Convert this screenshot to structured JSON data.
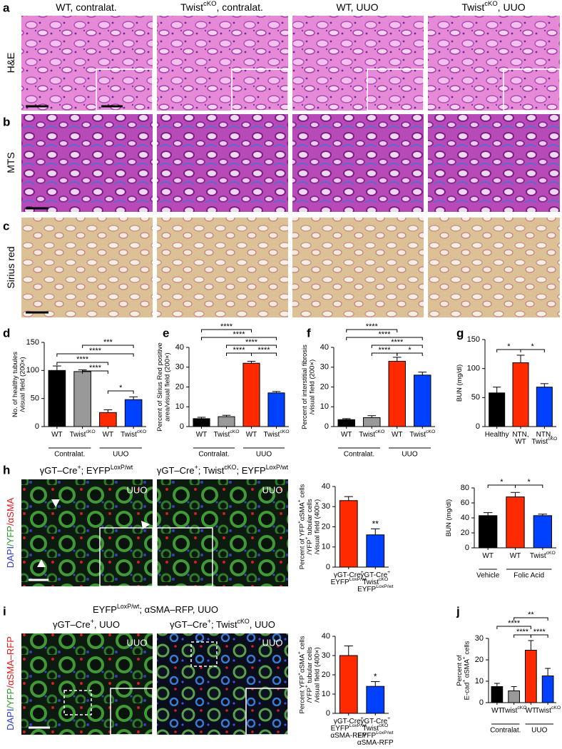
{
  "panel_letters": [
    "a",
    "b",
    "c",
    "d",
    "e",
    "f",
    "g",
    "h",
    "i",
    "j"
  ],
  "image_grid": {
    "columns": [
      [
        [
          "WT, contralat."
        ]
      ],
      [
        [
          "Twist",
          {
            "sup": "cKO"
          },
          ", contralat."
        ]
      ],
      [
        [
          "WT, UUO"
        ]
      ],
      [
        [
          "Twist",
          {
            "sup": "cKO"
          },
          ", UUO"
        ]
      ]
    ],
    "rows": [
      "H&E",
      "MTS",
      "Sirius red"
    ]
  },
  "panel_h": {
    "headers": [
      [
        [
          "γGT–Cre",
          {
            "sup": "+"
          },
          "; EYFP",
          {
            "sup": "LoxP/wt"
          }
        ]
      ],
      [
        [
          "γGT–Cre",
          {
            "sup": "+"
          },
          "; Twist",
          {
            "sup": "cKO"
          },
          "; EYFP",
          {
            "sup": "LoxP/wt"
          }
        ]
      ]
    ],
    "image_labels": [
      "UUO",
      "UUO"
    ],
    "stain": [
      [
        {
          "text": "DAPI",
          "color": "#2a3bd0"
        },
        {
          "text": "/YFP",
          "color": "#2a962a"
        },
        {
          "text": "/αSMA",
          "color": "#e01818"
        }
      ]
    ]
  },
  "panel_i": {
    "title": [
      [
        "EYFP",
        {
          "sup": "LoxP/wt"
        },
        "; αSMA–RFP, UUO"
      ]
    ],
    "headers": [
      [
        [
          "γGT–Cre",
          {
            "sup": "+"
          },
          ", UUO"
        ]
      ],
      [
        [
          "γGT–Cre",
          {
            "sup": "+"
          },
          "; Twist",
          {
            "sup": "cKO"
          },
          ", UUO"
        ]
      ]
    ],
    "image_labels": [
      "UUO",
      "UUO"
    ],
    "stain": [
      [
        {
          "text": "DAPI",
          "color": "#2a3bd0"
        },
        {
          "text": "/YFP",
          "color": "#2a962a"
        },
        {
          "text": "/αSMA–RFP",
          "color": "#e01818"
        }
      ]
    ]
  },
  "chart_data": [
    {
      "type": "bar",
      "ylabel": [
        [
          "No. of healthy tubules"
        ],
        [
          "/visual field (200×)"
        ]
      ],
      "ylim": [
        0,
        150
      ],
      "yticks": [
        0,
        50,
        100,
        150
      ],
      "categories": [
        "WT",
        [
          [
            "Twist",
            {
              "sup": "cKO"
            }
          ]
        ],
        "WT",
        [
          [
            "Twist",
            {
              "sup": "cKO"
            }
          ]
        ]
      ],
      "values": [
        100,
        98,
        25,
        48
      ],
      "errors": [
        8,
        3,
        5,
        5
      ],
      "colors": [
        "#000000",
        "#999999",
        "#ff2a00",
        "#0040ff"
      ],
      "groups": [
        "Contralat.",
        "UUO"
      ],
      "significance": [
        "***",
        "****",
        "****",
        "****",
        "*"
      ]
    },
    {
      "type": "bar",
      "ylabel": [
        [
          "Percent of Sirius Red positive"
        ],
        [
          "area/visual field (200×)"
        ]
      ],
      "ylim": [
        0,
        40
      ],
      "yticks": [
        0,
        10,
        20,
        30,
        40
      ],
      "categories": [
        "WT",
        [
          [
            "Twist",
            {
              "sup": "cKO"
            }
          ]
        ],
        "WT",
        [
          [
            "Twist",
            {
              "sup": "cKO"
            }
          ]
        ]
      ],
      "values": [
        4,
        5,
        32,
        17
      ],
      "errors": [
        0.7,
        0.7,
        1,
        0.7
      ],
      "colors": [
        "#000000",
        "#999999",
        "#ff2a00",
        "#0040ff"
      ],
      "groups": [
        "Contralat.",
        "UUO"
      ],
      "significance": [
        "****",
        "****",
        "****",
        "****",
        "****"
      ]
    },
    {
      "type": "bar",
      "ylabel": [
        [
          "Percent of interstitial fibrosis"
        ],
        [
          "/visual field (200×)"
        ]
      ],
      "ylim": [
        0,
        40
      ],
      "yticks": [
        0,
        10,
        20,
        30,
        40
      ],
      "categories": [
        "WT",
        [
          [
            "Twist",
            {
              "sup": "cKO"
            }
          ]
        ],
        "WT",
        [
          [
            "Twist",
            {
              "sup": "cKO"
            }
          ]
        ]
      ],
      "values": [
        3.5,
        4.5,
        33,
        26
      ],
      "errors": [
        0.5,
        1,
        2,
        1.5
      ],
      "colors": [
        "#000000",
        "#999999",
        "#ff2a00",
        "#0040ff"
      ],
      "groups": [
        "Contralat.",
        "UUO"
      ],
      "significance": [
        "****",
        "****",
        "****",
        "****",
        "*"
      ]
    },
    {
      "type": "bar",
      "ylabel": "BUN (mg/dl)",
      "ylim": [
        0,
        150
      ],
      "yticks": [
        0,
        50,
        100,
        150
      ],
      "categories": [
        "Healthy",
        [
          [
            "NTN,"
          ],
          [
            "WT"
          ]
        ],
        [
          [
            "NTN,"
          ],
          [
            "Twist",
            {
              "sup": "cKO"
            }
          ]
        ]
      ],
      "values": [
        58,
        110,
        68
      ],
      "errors": [
        10,
        13,
        6
      ],
      "colors": [
        "#000000",
        "#ff2a00",
        "#0040ff"
      ],
      "significance": [
        "*",
        "*"
      ]
    },
    {
      "type": "bar",
      "ylabel": [
        [
          "Percent of YFP",
          {
            "sup": "+"
          },
          "αSMA",
          {
            "sup": "+"
          },
          " cells"
        ],
        [
          "/YFP",
          {
            "sup": "+"
          },
          " tubular cells"
        ],
        [
          "/visual field (400×)"
        ]
      ],
      "ylim": [
        0,
        40
      ],
      "yticks": [
        0,
        10,
        20,
        30,
        40
      ],
      "categories": [
        [
          [
            "γGT-Cre",
            {
              "sup": "+"
            }
          ],
          [
            "EYFP",
            {
              "sup": "LoxP/wt"
            }
          ]
        ],
        [
          [
            "γGT-Cre",
            {
              "sup": "+"
            }
          ],
          [
            "Twist",
            {
              "sup": "cKO"
            }
          ],
          [
            "EYFP",
            {
              "sup": "LoxP/wt"
            }
          ]
        ]
      ],
      "values": [
        33,
        16
      ],
      "errors": [
        2,
        3
      ],
      "colors": [
        "#ff2a00",
        "#0040ff"
      ],
      "significance": [
        "**"
      ]
    },
    {
      "type": "bar",
      "ylabel": "BUN (mg/dl)",
      "ylim": [
        0,
        80
      ],
      "yticks": [
        0,
        20,
        40,
        60,
        80
      ],
      "categories": [
        "WT",
        "WT",
        [
          [
            "Twist",
            {
              "sup": "cKO"
            }
          ]
        ]
      ],
      "values": [
        43,
        68,
        43
      ],
      "errors": [
        4,
        6,
        2
      ],
      "colors": [
        "#000000",
        "#ff2a00",
        "#0040ff"
      ],
      "groups": [
        "Vehicle",
        "Folic Acid"
      ],
      "significance": [
        "*",
        "*"
      ]
    },
    {
      "type": "bar",
      "ylabel": [
        [
          "Percent YFP",
          {
            "sup": "+"
          },
          "αSMA",
          {
            "sup": "+"
          },
          " cells"
        ],
        [
          "/YFP",
          {
            "sup": "+"
          },
          " tubular cells"
        ],
        [
          "/visual field (400×)"
        ]
      ],
      "ylim": [
        0,
        40
      ],
      "yticks": [
        0,
        10,
        20,
        30,
        40
      ],
      "categories": [
        [
          [
            "γGT-Cre",
            {
              "sup": "+"
            }
          ],
          [
            "EYFP",
            {
              "sup": "LoxP/wt"
            }
          ],
          [
            "αSMA-RFP"
          ]
        ],
        [
          [
            "γGT-Cre",
            {
              "sup": "+"
            }
          ],
          [
            "Twist",
            {
              "sup": "cKO"
            }
          ],
          [
            "EYFP",
            {
              "sup": "LoxP/wt"
            }
          ],
          [
            "αSMA-RFP"
          ]
        ]
      ],
      "values": [
        30,
        14
      ],
      "errors": [
        5,
        2.5
      ],
      "colors": [
        "#ff2a00",
        "#0040ff"
      ],
      "significance": [
        "*"
      ]
    },
    {
      "type": "bar",
      "ylabel": [
        [
          "Percent of"
        ],
        [
          "E-cad",
          {
            "sup": "+"
          },
          " αSMA",
          {
            "sup": "+"
          },
          " cells"
        ]
      ],
      "ylim": [
        0,
        30
      ],
      "yticks": [
        0,
        10,
        20,
        30
      ],
      "categories": [
        "WT",
        [
          [
            "Twist",
            {
              "sup": "cKO"
            }
          ]
        ],
        "WT",
        [
          [
            "Twist",
            {
              "sup": "cKO"
            }
          ]
        ]
      ],
      "values": [
        7.5,
        5.5,
        24.5,
        12.5
      ],
      "errors": [
        1.5,
        2,
        4.5,
        3.5
      ],
      "colors": [
        "#000000",
        "#999999",
        "#ff2a00",
        "#0040ff"
      ],
      "groups": [
        "Contralat.",
        "UUO"
      ],
      "significance": [
        "**",
        "****",
        "****",
        "****"
      ]
    }
  ]
}
